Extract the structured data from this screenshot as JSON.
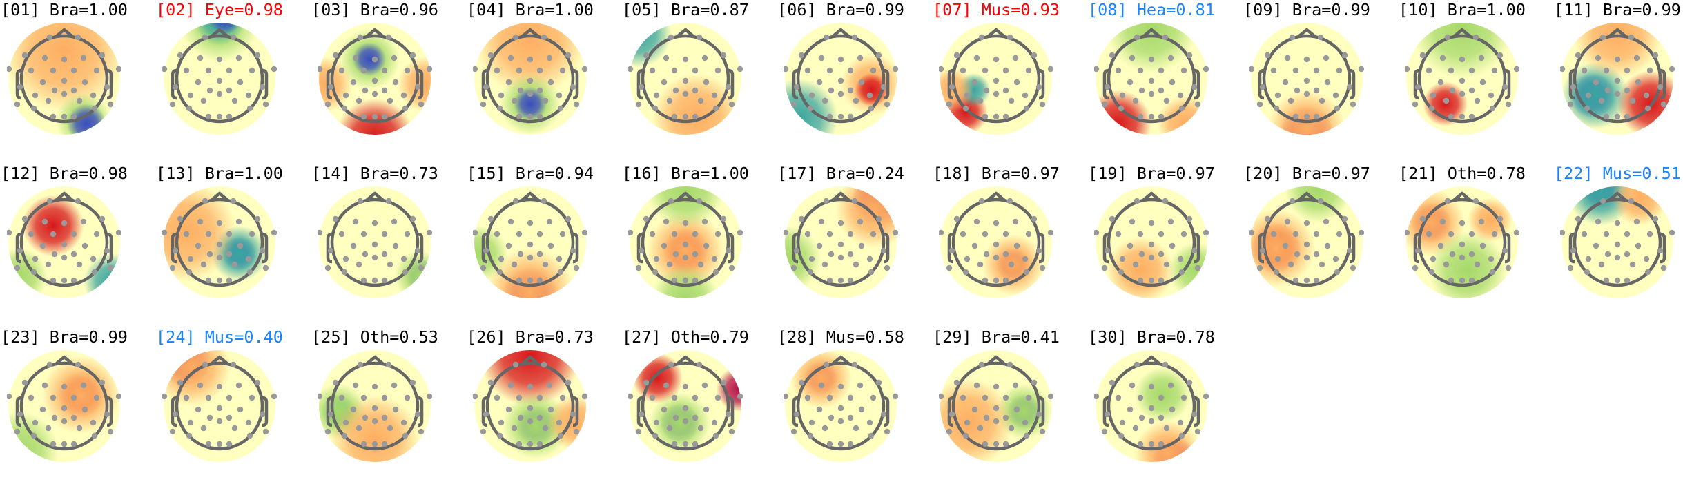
{
  "colors": {
    "default": "#000000",
    "red": "#ff0000",
    "blue": "#1a84ff"
  },
  "colormap": [
    "#3b4cc0",
    "#3ba5a0",
    "#a6d96a",
    "#ffffbf",
    "#fdae61",
    "#d7191c",
    "#b5124a"
  ],
  "components": [
    {
      "label": "[01] Bra=1.00",
      "color": "default"
    },
    {
      "label": "[02] Eye=0.98",
      "color": "red"
    },
    {
      "label": "[03] Bra=0.96",
      "color": "default"
    },
    {
      "label": "[04] Bra=1.00",
      "color": "default"
    },
    {
      "label": "[05] Bra=0.87",
      "color": "default"
    },
    {
      "label": "[06] Bra=0.99",
      "color": "default"
    },
    {
      "label": "[07] Mus=0.93",
      "color": "red"
    },
    {
      "label": "[08] Hea=0.81",
      "color": "blue"
    },
    {
      "label": "[09] Bra=0.99",
      "color": "default"
    },
    {
      "label": "[10] Bra=1.00",
      "color": "default"
    },
    {
      "label": "[11] Bra=0.99",
      "color": "default"
    },
    {
      "label": "[12] Bra=0.98",
      "color": "default"
    },
    {
      "label": "[13] Bra=1.00",
      "color": "default"
    },
    {
      "label": "[14] Bra=0.73",
      "color": "default"
    },
    {
      "label": "[15] Bra=0.94",
      "color": "default"
    },
    {
      "label": "[16] Bra=1.00",
      "color": "default"
    },
    {
      "label": "[17] Bra=0.24",
      "color": "default"
    },
    {
      "label": "[18] Bra=0.97",
      "color": "default"
    },
    {
      "label": "[19] Bra=0.97",
      "color": "default"
    },
    {
      "label": "[20] Bra=0.97",
      "color": "default"
    },
    {
      "label": "[21] Oth=0.78",
      "color": "default"
    },
    {
      "label": "[22] Mus=0.51",
      "color": "blue"
    },
    {
      "label": "[23] Bra=0.99",
      "color": "default"
    },
    {
      "label": "[24] Mus=0.40",
      "color": "blue"
    },
    {
      "label": "[25] Oth=0.53",
      "color": "default"
    },
    {
      "label": "[26] Bra=0.73",
      "color": "default"
    },
    {
      "label": "[27] Oth=0.79",
      "color": "default"
    },
    {
      "label": "[28] Mus=0.58",
      "color": "default"
    },
    {
      "label": "[29] Bra=0.41",
      "color": "default"
    },
    {
      "label": "[30] Bra=0.78",
      "color": "default"
    }
  ]
}
